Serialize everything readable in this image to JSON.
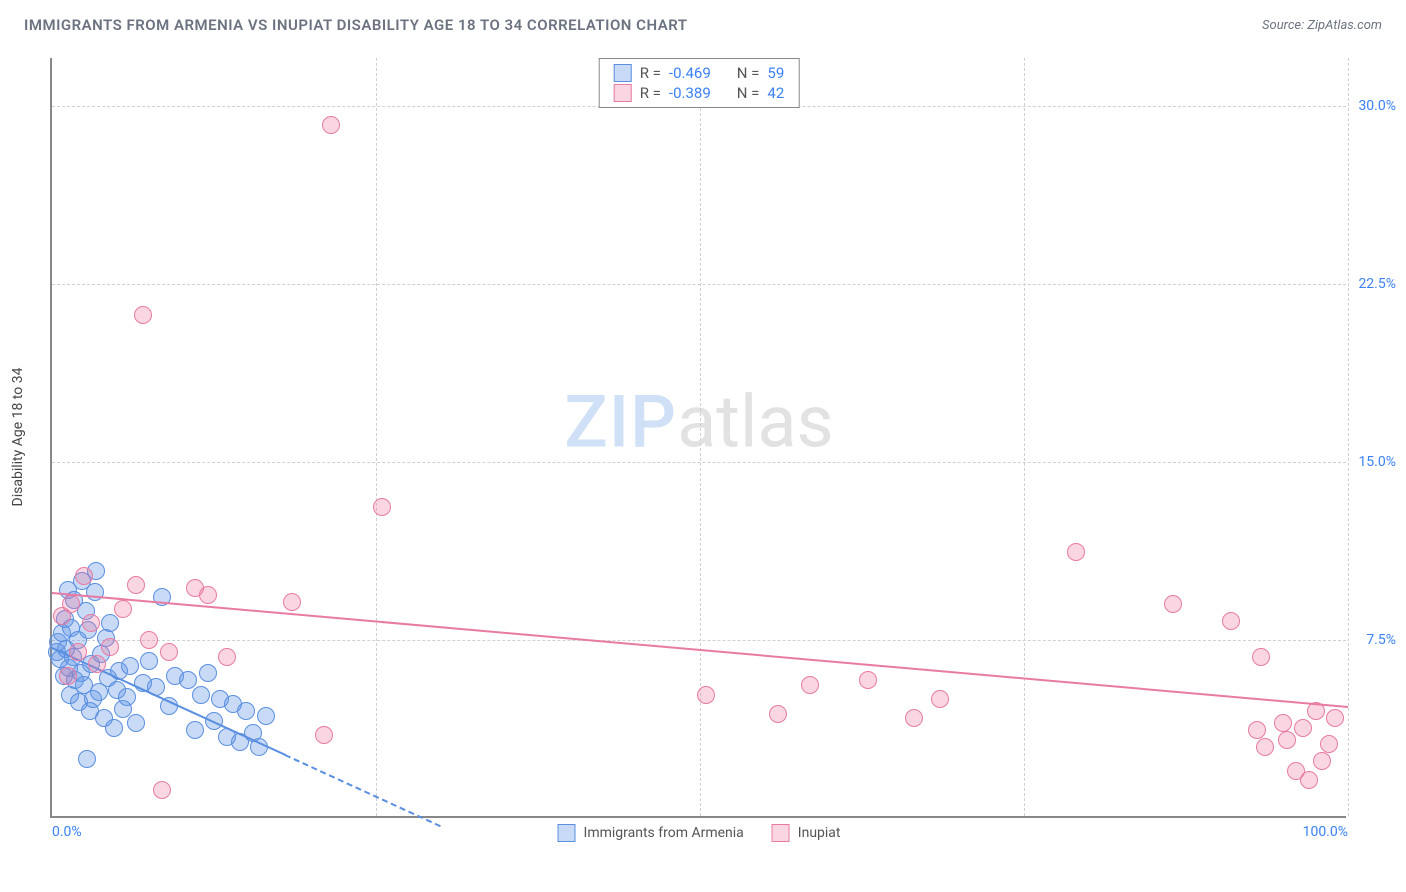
{
  "title": "IMMIGRANTS FROM ARMENIA VS INUPIAT DISABILITY AGE 18 TO 34 CORRELATION CHART",
  "source_label": "Source: ZipAtlas.com",
  "y_axis_title": "Disability Age 18 to 34",
  "watermark": {
    "part1": "ZIP",
    "part2": "atlas"
  },
  "chart": {
    "type": "scatter",
    "xlim": [
      0,
      100
    ],
    "ylim": [
      0,
      32
    ],
    "xticks": [
      0,
      100
    ],
    "xtick_labels": [
      "0.0%",
      "100.0%"
    ],
    "vgrid": [
      25,
      50,
      75,
      100
    ],
    "yticks": [
      7.5,
      15.0,
      22.5,
      30.0
    ],
    "ytick_labels": [
      "7.5%",
      "15.0%",
      "22.5%",
      "30.0%"
    ],
    "background_color": "#ffffff",
    "grid_color": "#d0d0d0",
    "point_radius": 9,
    "series": [
      {
        "name": "Immigrants from Armenia",
        "fill": "rgba(96,149,228,0.35)",
        "stroke": "#5b8fe0",
        "r_value": "-0.469",
        "n_value": "59",
        "trend": {
          "x1": 0,
          "y1": 7.2,
          "x2": 18,
          "y2": 2.7,
          "dash_to_x": 30,
          "dash_to_y": -0.3
        },
        "points": [
          [
            0.4,
            7.0
          ],
          [
            0.5,
            7.4
          ],
          [
            0.6,
            6.7
          ],
          [
            0.8,
            7.8
          ],
          [
            0.9,
            6.0
          ],
          [
            1.0,
            8.4
          ],
          [
            1.1,
            7.1
          ],
          [
            1.2,
            9.6
          ],
          [
            1.3,
            6.3
          ],
          [
            1.4,
            5.2
          ],
          [
            1.5,
            8.0
          ],
          [
            1.6,
            6.8
          ],
          [
            1.7,
            9.2
          ],
          [
            1.8,
            5.8
          ],
          [
            2.0,
            7.5
          ],
          [
            2.1,
            4.9
          ],
          [
            2.2,
            6.1
          ],
          [
            2.3,
            10.0
          ],
          [
            2.5,
            5.6
          ],
          [
            2.6,
            8.7
          ],
          [
            2.8,
            7.9
          ],
          [
            2.9,
            4.5
          ],
          [
            3.0,
            6.5
          ],
          [
            3.2,
            5.0
          ],
          [
            3.3,
            9.5
          ],
          [
            3.4,
            10.4
          ],
          [
            3.6,
            5.3
          ],
          [
            3.8,
            6.9
          ],
          [
            4.0,
            4.2
          ],
          [
            4.2,
            7.6
          ],
          [
            4.3,
            5.9
          ],
          [
            4.5,
            8.2
          ],
          [
            4.8,
            3.8
          ],
          [
            5.0,
            5.4
          ],
          [
            5.2,
            6.2
          ],
          [
            5.5,
            4.6
          ],
          [
            5.8,
            5.1
          ],
          [
            6.0,
            6.4
          ],
          [
            6.5,
            4.0
          ],
          [
            7.0,
            5.7
          ],
          [
            7.5,
            6.6
          ],
          [
            8.0,
            5.5
          ],
          [
            8.5,
            9.3
          ],
          [
            9.0,
            4.7
          ],
          [
            9.5,
            6.0
          ],
          [
            10.5,
            5.8
          ],
          [
            11.0,
            3.7
          ],
          [
            11.5,
            5.2
          ],
          [
            12.0,
            6.1
          ],
          [
            12.5,
            4.1
          ],
          [
            13.0,
            5.0
          ],
          [
            13.5,
            3.4
          ],
          [
            14.0,
            4.8
          ],
          [
            14.5,
            3.2
          ],
          [
            15.0,
            4.5
          ],
          [
            15.5,
            3.6
          ],
          [
            16.0,
            3.0
          ],
          [
            16.5,
            4.3
          ],
          [
            2.7,
            2.5
          ]
        ]
      },
      {
        "name": "Inupiat",
        "fill": "rgba(236,120,160,0.30)",
        "stroke": "#e87ba3",
        "r_value": "-0.389",
        "n_value": "42",
        "trend": {
          "x1": 0,
          "y1": 9.5,
          "x2": 100,
          "y2": 4.7
        },
        "points": [
          [
            0.8,
            8.5
          ],
          [
            1.2,
            6.0
          ],
          [
            1.5,
            9.0
          ],
          [
            2.0,
            7.0
          ],
          [
            2.5,
            10.2
          ],
          [
            3.0,
            8.2
          ],
          [
            3.5,
            6.5
          ],
          [
            4.5,
            7.2
          ],
          [
            5.5,
            8.8
          ],
          [
            6.5,
            9.8
          ],
          [
            7.0,
            21.2
          ],
          [
            7.5,
            7.5
          ],
          [
            9.0,
            7.0
          ],
          [
            11.0,
            9.7
          ],
          [
            12.0,
            9.4
          ],
          [
            13.5,
            6.8
          ],
          [
            18.5,
            9.1
          ],
          [
            21.5,
            29.2
          ],
          [
            21.0,
            3.5
          ],
          [
            25.5,
            13.1
          ],
          [
            8.5,
            1.2
          ],
          [
            50.5,
            5.2
          ],
          [
            56.0,
            4.4
          ],
          [
            58.5,
            5.6
          ],
          [
            63.0,
            5.8
          ],
          [
            66.5,
            4.2
          ],
          [
            68.5,
            5.0
          ],
          [
            79.0,
            11.2
          ],
          [
            86.5,
            9.0
          ],
          [
            91.0,
            8.3
          ],
          [
            93.0,
            3.7
          ],
          [
            93.3,
            6.8
          ],
          [
            93.6,
            3.0
          ],
          [
            95.0,
            4.0
          ],
          [
            95.3,
            3.3
          ],
          [
            96.0,
            2.0
          ],
          [
            96.5,
            3.8
          ],
          [
            97.0,
            1.6
          ],
          [
            97.5,
            4.5
          ],
          [
            98.0,
            2.4
          ],
          [
            98.5,
            3.1
          ],
          [
            99.0,
            4.2
          ]
        ]
      }
    ]
  },
  "stats_legend": {
    "r_label": "R =",
    "n_label": "N ="
  },
  "colors": {
    "tick_label": "#3b82f6",
    "axis_title": "#444444",
    "title": "#6b7280"
  }
}
